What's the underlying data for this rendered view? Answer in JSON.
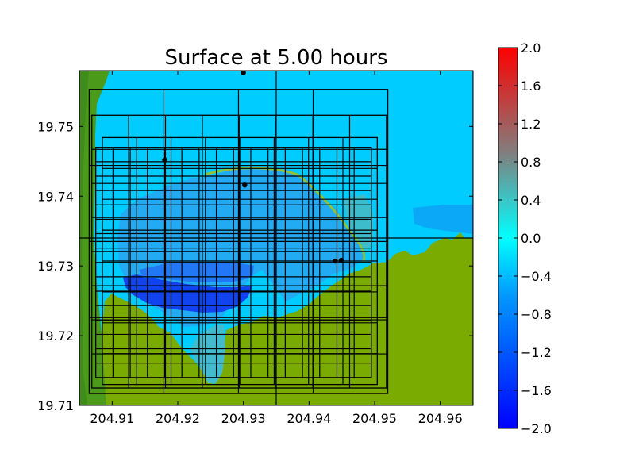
{
  "chart_data": {
    "type": "heatmap",
    "title": "Surface at 5.00 hours",
    "xlabel": "",
    "ylabel": "",
    "xlim": [
      204.905,
      204.965
    ],
    "ylim": [
      19.71,
      19.758
    ],
    "x_ticks": [
      "204.91",
      "204.92",
      "204.93",
      "204.94",
      "204.95",
      "204.96"
    ],
    "y_ticks": [
      "19.71",
      "19.72",
      "19.73",
      "19.74",
      "19.75"
    ],
    "colorbar": {
      "range": [
        -2.0,
        2.0
      ],
      "tick_labels": [
        "2.0",
        "1.6",
        "1.2",
        "0.8",
        "0.4",
        "0.0",
        "−0.4",
        "−0.8",
        "−1.2",
        "−1.6",
        "−2.0"
      ],
      "colors": {
        "min": "#0000ff",
        "low": "#0099ff",
        "zero": "#00ffff",
        "mid_high": "#808080",
        "max": "#ff0000"
      }
    },
    "field_colors": {
      "land": "#7aab00",
      "land_dark": "#4c9a1a",
      "water": "#00ccff",
      "deep_water": "#1144ee",
      "shallow": "#44bbcc"
    },
    "gauges": [
      {
        "x": 204.93,
        "y": 19.7577
      },
      {
        "x": 204.918,
        "y": 19.7452
      },
      {
        "x": 204.9302,
        "y": 19.7416
      },
      {
        "x": 204.944,
        "y": 19.7307
      },
      {
        "x": 204.9449,
        "y": 19.7308
      }
    ],
    "grid_patches": [
      {
        "x0": 204.905,
        "x1": 204.965,
        "y0": 19.71,
        "y1": 19.758,
        "nx": 2,
        "ny": 2
      },
      {
        "x0": 204.9065,
        "x1": 204.952,
        "y0": 19.7117,
        "y1": 19.7553,
        "nx": 4,
        "ny": 4
      },
      {
        "x0": 204.9069,
        "x1": 204.9518,
        "y0": 19.7125,
        "y1": 19.7516,
        "nx": 8,
        "ny": 8
      },
      {
        "x0": 204.9085,
        "x1": 204.9504,
        "y0": 19.713,
        "y1": 19.7484,
        "nx": 8,
        "ny": 8
      },
      {
        "x0": 204.9075,
        "x1": 204.9495,
        "y0": 19.714,
        "y1": 19.747,
        "nx": 16,
        "ny": 16
      }
    ]
  }
}
